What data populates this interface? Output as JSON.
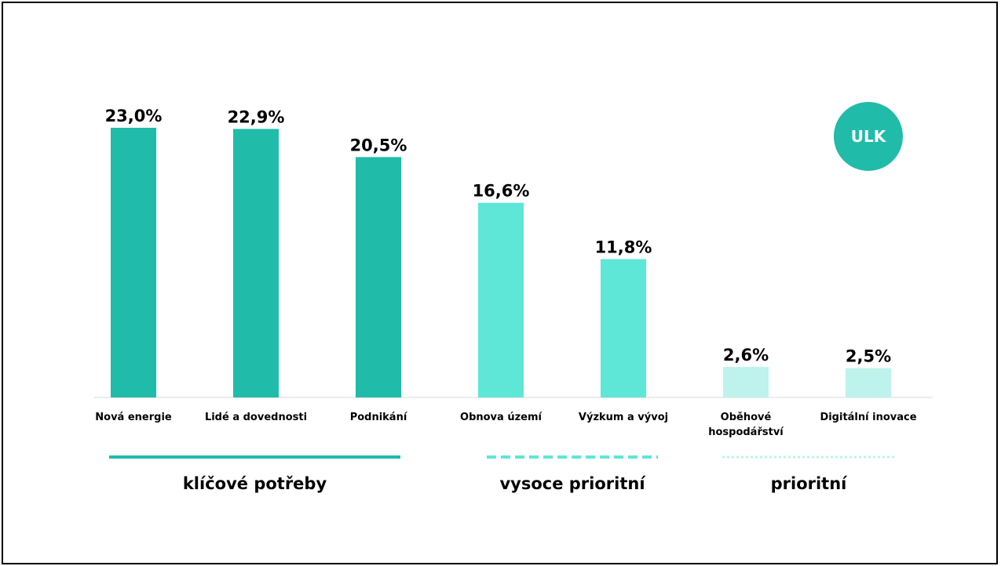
{
  "chart_data": {
    "type": "bar",
    "categories": [
      "Nová energie",
      "Lidé a dovednosti",
      "Podnikání",
      "Obnova území",
      "Výzkum a vývoj",
      "Oběhové hospodářství",
      "Digitální inovace"
    ],
    "category_lines": [
      [
        "Nová energie"
      ],
      [
        "Lidé a dovednosti"
      ],
      [
        "Podnikání"
      ],
      [
        "Obnova území"
      ],
      [
        "Výzkum a vývoj"
      ],
      [
        "Oběhové",
        "hospodářství"
      ],
      [
        "Digitální inovace"
      ]
    ],
    "values": [
      23.0,
      22.9,
      20.5,
      16.6,
      11.8,
      2.6,
      2.5
    ],
    "value_labels": [
      "23,0%",
      "22,9%",
      "20,5%",
      "16,6%",
      "11,8%",
      "2,6%",
      "2,5%"
    ],
    "bar_groups": [
      0,
      0,
      0,
      1,
      1,
      2,
      2
    ],
    "ylim": [
      0,
      23.0
    ],
    "grid": false,
    "groups": [
      {
        "label": "klíčové potřeby",
        "line_style": "solid",
        "color": "#20bba9"
      },
      {
        "label": "vysoce prioritní",
        "line_style": "dashed",
        "color": "#5ee6d6"
      },
      {
        "label": "prioritní",
        "line_style": "dotted",
        "color": "#bdf3ec"
      }
    ],
    "badge": "ULK",
    "badge_color": "#20bba9",
    "axis_color": "#d9d9d9"
  }
}
